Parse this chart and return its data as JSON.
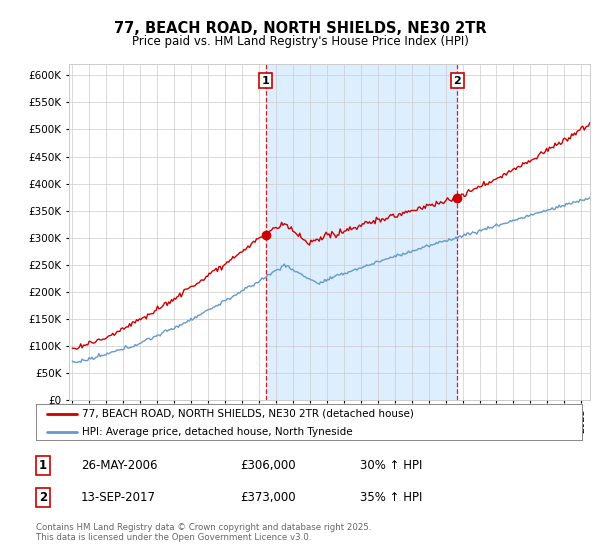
{
  "title": "77, BEACH ROAD, NORTH SHIELDS, NE30 2TR",
  "subtitle": "Price paid vs. HM Land Registry's House Price Index (HPI)",
  "ylim": [
    0,
    620000
  ],
  "yticks": [
    0,
    50000,
    100000,
    150000,
    200000,
    250000,
    300000,
    350000,
    400000,
    450000,
    500000,
    550000,
    600000
  ],
  "xlim_start": 1994.8,
  "xlim_end": 2025.5,
  "red_color": "#cc0000",
  "blue_color": "#6699cc",
  "fill_color": "#ddeeff",
  "vline_color": "#cc0000",
  "marker1_x": 2006.4,
  "marker1_y": 306000,
  "marker2_x": 2017.7,
  "marker2_y": 373000,
  "legend_line1": "77, BEACH ROAD, NORTH SHIELDS, NE30 2TR (detached house)",
  "legend_line2": "HPI: Average price, detached house, North Tyneside",
  "table_row1": [
    "1",
    "26-MAY-2006",
    "£306,000",
    "30% ↑ HPI"
  ],
  "table_row2": [
    "2",
    "13-SEP-2017",
    "£373,000",
    "35% ↑ HPI"
  ],
  "footnote": "Contains HM Land Registry data © Crown copyright and database right 2025.\nThis data is licensed under the Open Government Licence v3.0.",
  "grid_color": "#cccccc",
  "background_color": "#ffffff",
  "fig_width": 6.0,
  "fig_height": 5.6
}
